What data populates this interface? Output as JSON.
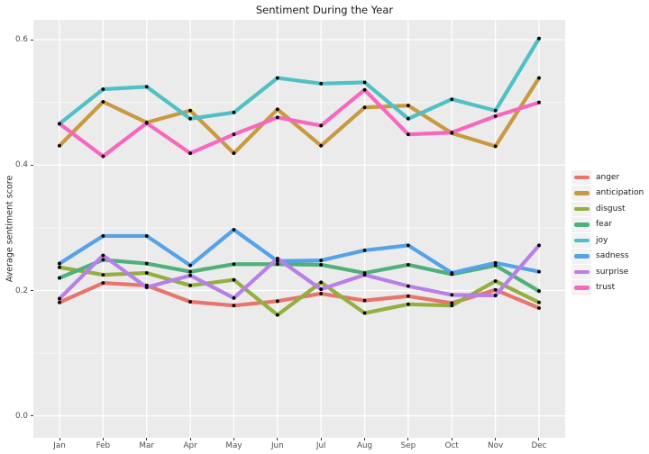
{
  "title": "Sentiment During the Year",
  "ylabel": "Average sentiment score",
  "chart_data": {
    "type": "line",
    "x": [
      "Jan",
      "Feb",
      "Mar",
      "Apr",
      "May",
      "Jun",
      "Jul",
      "Aug",
      "Sep",
      "Oct",
      "Nov",
      "Dec"
    ],
    "series": [
      {
        "name": "anger",
        "color": "#E8756D",
        "values": [
          0.181,
          0.212,
          0.208,
          0.182,
          0.176,
          0.183,
          0.195,
          0.184,
          0.191,
          0.18,
          0.201,
          0.172
        ]
      },
      {
        "name": "anticipation",
        "color": "#C89A40",
        "values": [
          0.431,
          0.501,
          0.468,
          0.487,
          0.419,
          0.489,
          0.431,
          0.492,
          0.495,
          0.451,
          0.43,
          0.539
        ]
      },
      {
        "name": "disgust",
        "color": "#94AE40",
        "values": [
          0.237,
          0.225,
          0.228,
          0.208,
          0.217,
          0.161,
          0.213,
          0.164,
          0.178,
          0.176,
          0.215,
          0.181
        ]
      },
      {
        "name": "fear",
        "color": "#4FB07A",
        "values": [
          0.22,
          0.249,
          0.243,
          0.23,
          0.242,
          0.242,
          0.241,
          0.228,
          0.241,
          0.226,
          0.24,
          0.199
        ]
      },
      {
        "name": "joy",
        "color": "#4FC0C4",
        "values": [
          0.466,
          0.521,
          0.525,
          0.474,
          0.484,
          0.539,
          0.53,
          0.532,
          0.474,
          0.505,
          0.487,
          0.602
        ]
      },
      {
        "name": "sadness",
        "color": "#56A2E8",
        "values": [
          0.243,
          0.287,
          0.287,
          0.24,
          0.297,
          0.247,
          0.248,
          0.264,
          0.272,
          0.228,
          0.244,
          0.23
        ]
      },
      {
        "name": "surprise",
        "color": "#B97FE8",
        "values": [
          0.187,
          0.256,
          0.205,
          0.224,
          0.188,
          0.251,
          0.202,
          0.225,
          0.207,
          0.193,
          0.192,
          0.272
        ]
      },
      {
        "name": "trust",
        "color": "#F767BE",
        "values": [
          0.466,
          0.414,
          0.467,
          0.419,
          0.449,
          0.476,
          0.463,
          0.52,
          0.449,
          0.452,
          0.478,
          0.5
        ]
      }
    ],
    "ylim": [
      0.0,
      0.62
    ],
    "yticks": [
      0.0,
      0.2,
      0.4,
      0.6
    ],
    "ytick_labels": [
      "0.0",
      "0.2",
      "0.4",
      "0.6"
    ],
    "minor_yticks": [
      0.1,
      0.3,
      0.5
    ],
    "title": "Sentiment During the Year",
    "xlabel": "",
    "ylabel": "Average sentiment score",
    "legend_position": "right",
    "grid": "on",
    "panel_bg": "#EBEBEB",
    "grid_color": "#FFFFFF",
    "point_color": "#000000",
    "tick_label_color": "#4d4d4d"
  }
}
